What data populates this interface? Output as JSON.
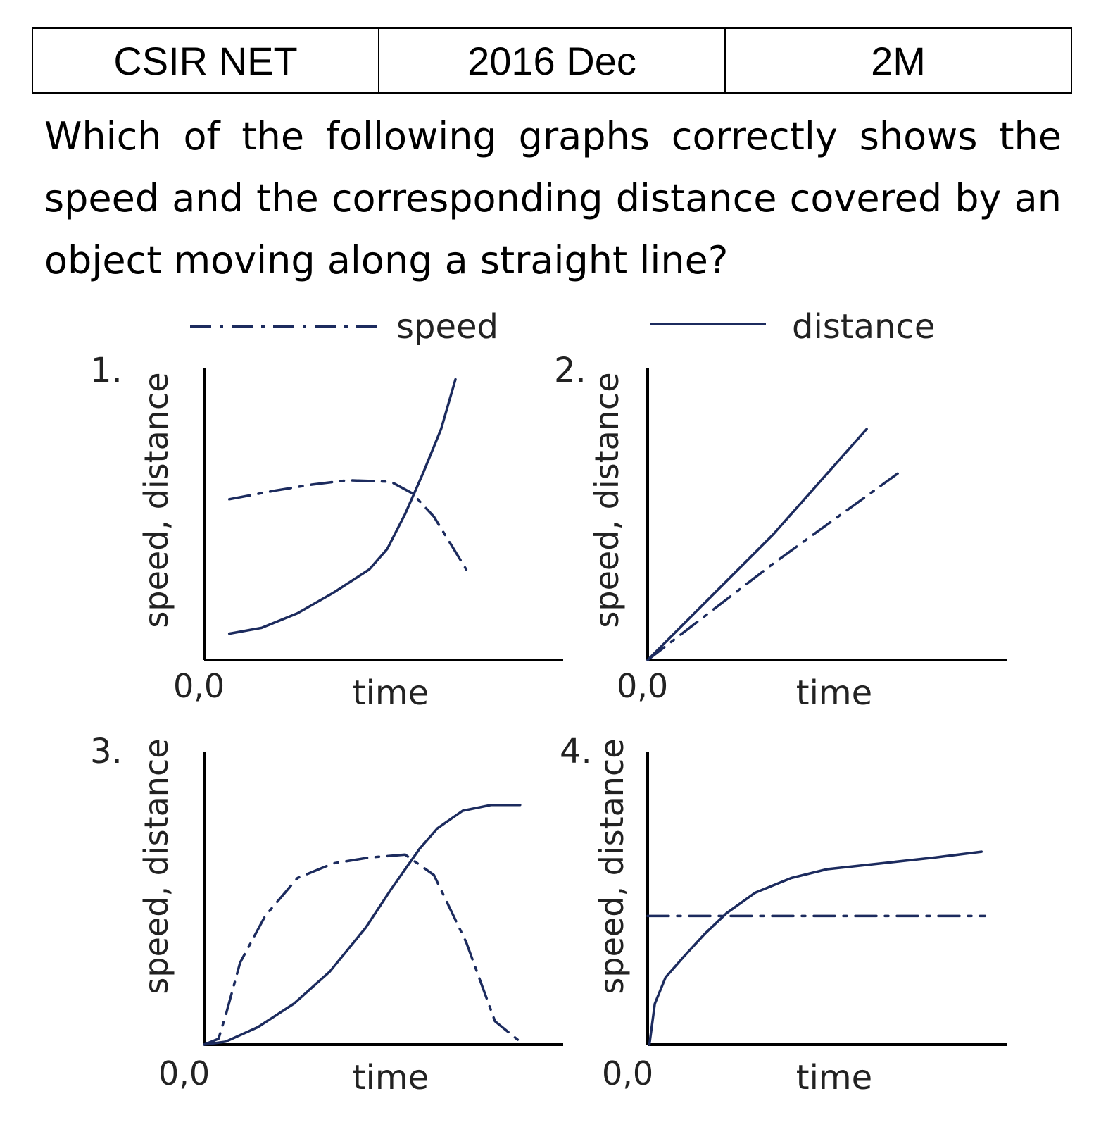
{
  "header": {
    "exam": "CSIR NET",
    "session": "2016 Dec",
    "marks": "2M"
  },
  "question": "Which of the following graphs correctly shows the speed and the corresponding distance covered by an object moving along a straight line?",
  "colors": {
    "line": "#1c2b5e",
    "axis": "#000000",
    "text": "#222222"
  },
  "chart_data": [
    {
      "type": "line",
      "label": "1.",
      "xlabel": "time",
      "ylabel": "speed, distance",
      "origin_label": "0,0",
      "legend": [
        {
          "name": "speed",
          "style": "dash-dot"
        },
        {
          "name": "distance",
          "style": "solid"
        }
      ],
      "xlim": [
        0,
        10
      ],
      "ylim": [
        0,
        10
      ],
      "series": [
        {
          "name": "distance",
          "style": "solid",
          "points": [
            [
              0.7,
              0.9
            ],
            [
              1.6,
              1.1
            ],
            [
              2.6,
              1.6
            ],
            [
              3.6,
              2.3
            ],
            [
              4.6,
              3.1
            ],
            [
              5.1,
              3.8
            ],
            [
              5.6,
              5
            ],
            [
              6.1,
              6.4
            ],
            [
              6.6,
              7.9
            ],
            [
              7.0,
              9.6
            ]
          ]
        },
        {
          "name": "speed",
          "style": "dash-dot",
          "points": [
            [
              0.7,
              5.5
            ],
            [
              2.0,
              5.8
            ],
            [
              3.0,
              6.0
            ],
            [
              4.0,
              6.15
            ],
            [
              5.2,
              6.1
            ],
            [
              5.8,
              5.7
            ],
            [
              6.4,
              4.9
            ],
            [
              6.9,
              3.9
            ],
            [
              7.3,
              3.1
            ]
          ]
        }
      ]
    },
    {
      "type": "line",
      "label": "2.",
      "xlabel": "time",
      "ylabel": "speed, distance",
      "origin_label": "0,0",
      "xlim": [
        0,
        10
      ],
      "ylim": [
        0,
        10
      ],
      "series": [
        {
          "name": "distance",
          "style": "solid",
          "points": [
            [
              0,
              0
            ],
            [
              3.5,
              4.3
            ],
            [
              6.1,
              7.9
            ]
          ]
        },
        {
          "name": "speed",
          "style": "dash-dot",
          "points": [
            [
              0,
              0
            ],
            [
              3.5,
              3.3
            ],
            [
              7.1,
              6.5
            ]
          ]
        }
      ]
    },
    {
      "type": "line",
      "label": "3.",
      "xlabel": "time",
      "ylabel": "speed, distance",
      "origin_label": "0,0",
      "xlim": [
        0,
        10
      ],
      "ylim": [
        0,
        10
      ],
      "series": [
        {
          "name": "distance",
          "style": "solid",
          "points": [
            [
              0,
              0
            ],
            [
              0.6,
              0.1
            ],
            [
              1.5,
              0.6
            ],
            [
              2.5,
              1.4
            ],
            [
              3.5,
              2.5
            ],
            [
              4.5,
              4.0
            ],
            [
              5.2,
              5.3
            ],
            [
              6.0,
              6.7
            ],
            [
              6.5,
              7.4
            ],
            [
              7.2,
              8.0
            ],
            [
              8.0,
              8.2
            ],
            [
              8.8,
              8.2
            ]
          ]
        },
        {
          "name": "speed",
          "style": "dash-dot",
          "points": [
            [
              0,
              0
            ],
            [
              0.4,
              0.2
            ],
            [
              0.6,
              1.0
            ],
            [
              1.0,
              2.8
            ],
            [
              1.7,
              4.4
            ],
            [
              2.6,
              5.7
            ],
            [
              3.6,
              6.2
            ],
            [
              4.6,
              6.4
            ],
            [
              5.6,
              6.5
            ],
            [
              6.4,
              5.8
            ],
            [
              7.3,
              3.5
            ],
            [
              8.1,
              0.8
            ],
            [
              8.8,
              0.1
            ]
          ]
        }
      ]
    },
    {
      "type": "line",
      "label": "4.",
      "xlabel": "time",
      "ylabel": "speed, distance",
      "origin_label": "0,0",
      "xlim": [
        0,
        10
      ],
      "ylim": [
        0,
        10
      ],
      "series": [
        {
          "name": "distance",
          "style": "solid",
          "points": [
            [
              0.05,
              0
            ],
            [
              0.2,
              1.4
            ],
            [
              0.5,
              2.3
            ],
            [
              1.0,
              3.0
            ],
            [
              1.6,
              3.8
            ],
            [
              2.2,
              4.5
            ],
            [
              3.0,
              5.2
            ],
            [
              4.0,
              5.7
            ],
            [
              5.0,
              6.0
            ],
            [
              6.5,
              6.2
            ],
            [
              8.0,
              6.4
            ],
            [
              9.3,
              6.6
            ]
          ]
        },
        {
          "name": "speed",
          "style": "dash-dot",
          "points": [
            [
              0,
              4.4
            ],
            [
              9.4,
              4.4
            ]
          ]
        }
      ]
    }
  ]
}
